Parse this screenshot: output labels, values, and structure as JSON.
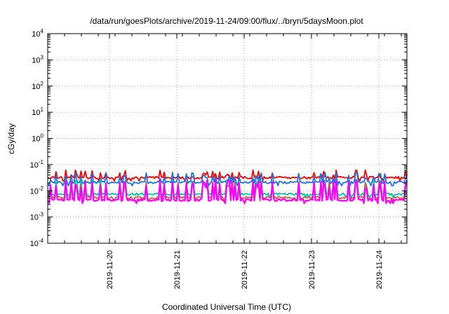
{
  "chart_data": {
    "type": "line",
    "title": "/data/run/goesPlots/archive/2019-11-24/09:00/flux/../bryn/5daysMoon.plot",
    "xlabel": "Coordinated Universal Time (UTC)",
    "ylabel": "cGy/day",
    "y_scale": "log",
    "ylim": [
      0.0001,
      10000
    ],
    "y_ticks": [
      {
        "value": 0.0001,
        "base": "10",
        "exp": "-4"
      },
      {
        "value": 0.001,
        "base": "10",
        "exp": "-3"
      },
      {
        "value": 0.01,
        "base": "10",
        "exp": "-2"
      },
      {
        "value": 0.1,
        "base": "10",
        "exp": "-1"
      },
      {
        "value": 1,
        "base": "10",
        "exp": "0"
      },
      {
        "value": 10,
        "base": "10",
        "exp": "1"
      },
      {
        "value": 100,
        "base": "10",
        "exp": "2"
      },
      {
        "value": 1000,
        "base": "10",
        "exp": "3"
      },
      {
        "value": 10000,
        "base": "10",
        "exp": "4"
      }
    ],
    "xlim": [
      "2019-11-19 02:00",
      "2019-11-24 10:00"
    ],
    "x_ticks": [
      "2019-11-20",
      "2019-11-21",
      "2019-11-22",
      "2019-11-23",
      "2019-11-24"
    ],
    "grid": true,
    "legend": "none",
    "series": [
      {
        "color": "#ff0000",
        "base": 0.032,
        "spike": 0.048
      },
      {
        "color": "#1f6fe8",
        "base": 0.021,
        "spike": 0.04
      },
      {
        "color": "#00c8a0",
        "base": 0.0075,
        "spike": 0.022
      },
      {
        "color": "#e05050",
        "base": 0.0055,
        "spike": 0.018
      },
      {
        "color": "#ff00ff",
        "base": 0.0045,
        "spike": 0.02
      }
    ]
  }
}
